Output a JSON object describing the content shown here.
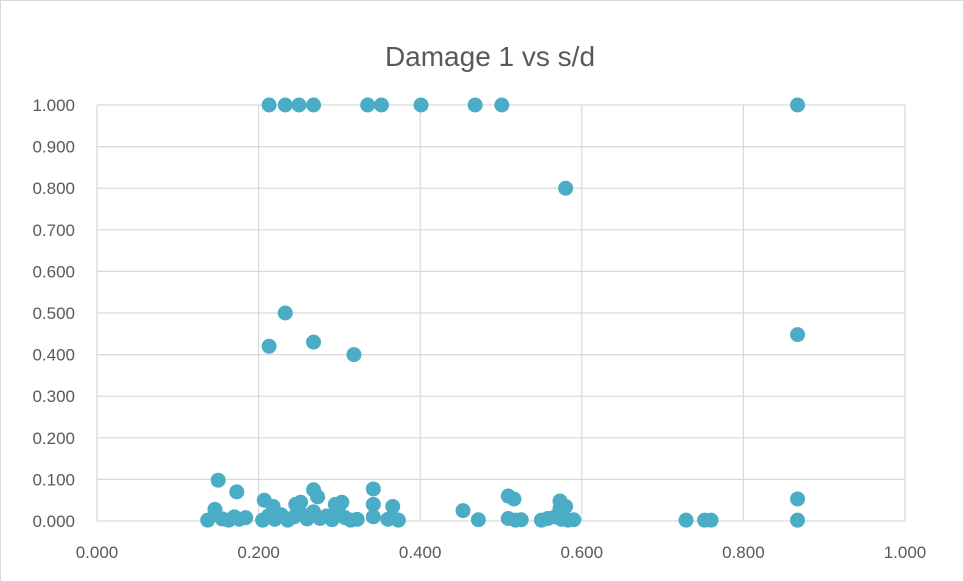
{
  "chart_data": {
    "type": "scatter",
    "title": "Damage 1 vs s/d",
    "xlim": [
      0,
      1
    ],
    "ylim": [
      0,
      1
    ],
    "x_ticks": [
      "0.000",
      "0.200",
      "0.400",
      "0.600",
      "0.800",
      "1.000"
    ],
    "y_ticks": [
      "0.000",
      "0.100",
      "0.200",
      "0.300",
      "0.400",
      "0.500",
      "0.600",
      "0.700",
      "0.800",
      "0.900",
      "1.000"
    ],
    "grid": true,
    "color": "#4bacc6",
    "points": [
      [
        0.213,
        1.0
      ],
      [
        0.233,
        1.0
      ],
      [
        0.25,
        1.0
      ],
      [
        0.268,
        1.0
      ],
      [
        0.335,
        1.0
      ],
      [
        0.352,
        1.0
      ],
      [
        0.401,
        1.0
      ],
      [
        0.468,
        1.0
      ],
      [
        0.501,
        1.0
      ],
      [
        0.867,
        1.0
      ],
      [
        0.58,
        0.8
      ],
      [
        0.233,
        0.5
      ],
      [
        0.867,
        0.448
      ],
      [
        0.213,
        0.42
      ],
      [
        0.268,
        0.43
      ],
      [
        0.318,
        0.4
      ],
      [
        0.15,
        0.098
      ],
      [
        0.173,
        0.07
      ],
      [
        0.342,
        0.077
      ],
      [
        0.268,
        0.075
      ],
      [
        0.867,
        0.053
      ],
      [
        0.509,
        0.06
      ],
      [
        0.516,
        0.053
      ],
      [
        0.207,
        0.05
      ],
      [
        0.252,
        0.045
      ],
      [
        0.303,
        0.045
      ],
      [
        0.573,
        0.048
      ],
      [
        0.218,
        0.035
      ],
      [
        0.246,
        0.04
      ],
      [
        0.273,
        0.058
      ],
      [
        0.295,
        0.04
      ],
      [
        0.342,
        0.04
      ],
      [
        0.366,
        0.035
      ],
      [
        0.58,
        0.035
      ],
      [
        0.146,
        0.028
      ],
      [
        0.453,
        0.025
      ],
      [
        0.573,
        0.03
      ],
      [
        0.137,
        0.002
      ],
      [
        0.155,
        0.005
      ],
      [
        0.163,
        0.002
      ],
      [
        0.17,
        0.01
      ],
      [
        0.176,
        0.004
      ],
      [
        0.184,
        0.008
      ],
      [
        0.205,
        0.002
      ],
      [
        0.212,
        0.012
      ],
      [
        0.22,
        0.004
      ],
      [
        0.228,
        0.015
      ],
      [
        0.236,
        0.002
      ],
      [
        0.244,
        0.01
      ],
      [
        0.252,
        0.018
      ],
      [
        0.26,
        0.005
      ],
      [
        0.268,
        0.022
      ],
      [
        0.276,
        0.006
      ],
      [
        0.284,
        0.012
      ],
      [
        0.291,
        0.003
      ],
      [
        0.299,
        0.02
      ],
      [
        0.307,
        0.008
      ],
      [
        0.314,
        0.002
      ],
      [
        0.322,
        0.004
      ],
      [
        0.342,
        0.01
      ],
      [
        0.36,
        0.004
      ],
      [
        0.366,
        0.008
      ],
      [
        0.373,
        0.002
      ],
      [
        0.472,
        0.003
      ],
      [
        0.509,
        0.006
      ],
      [
        0.518,
        0.002
      ],
      [
        0.525,
        0.003
      ],
      [
        0.55,
        0.002
      ],
      [
        0.558,
        0.006
      ],
      [
        0.567,
        0.01
      ],
      [
        0.575,
        0.004
      ],
      [
        0.583,
        0.002
      ],
      [
        0.59,
        0.003
      ],
      [
        0.729,
        0.002
      ],
      [
        0.752,
        0.002
      ],
      [
        0.76,
        0.002
      ],
      [
        0.867,
        0.002
      ]
    ]
  }
}
